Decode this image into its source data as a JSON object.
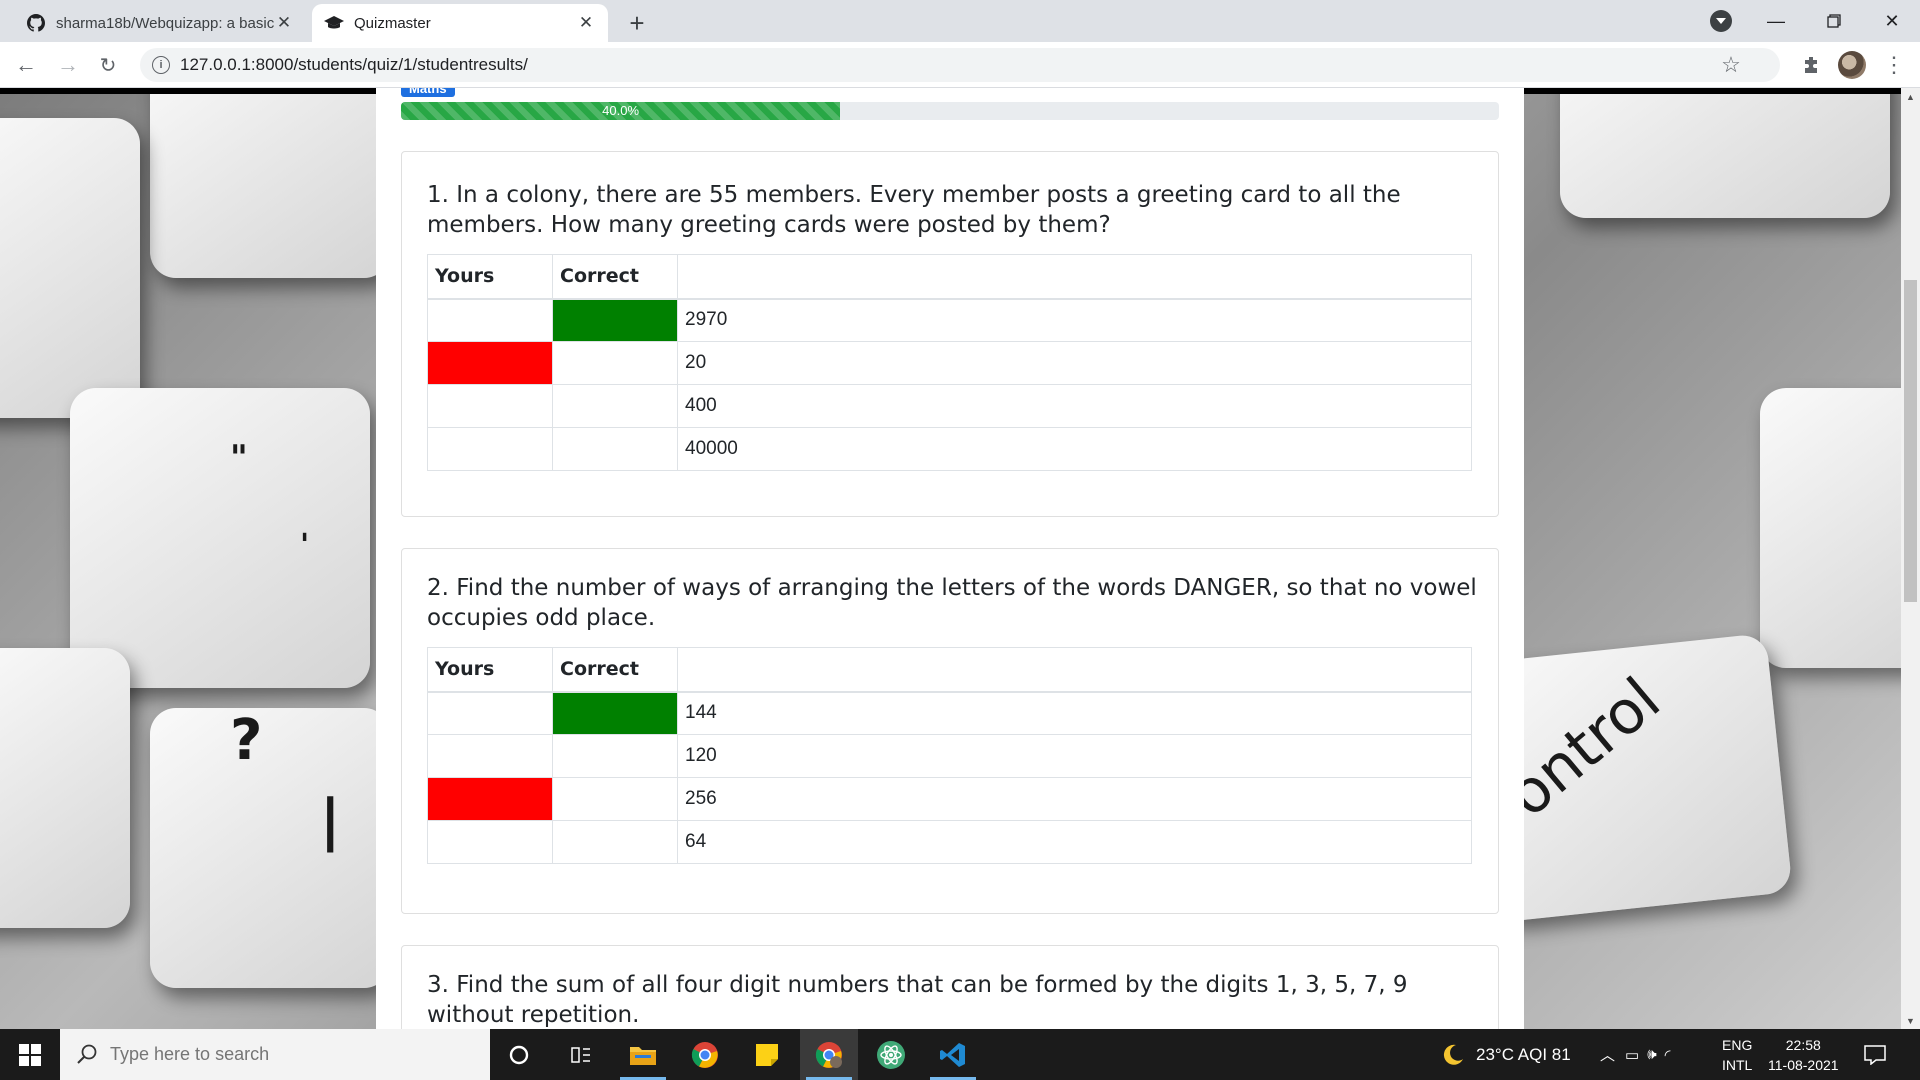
{
  "browser": {
    "tabs": [
      {
        "title": "sharma18b/Webquizapp: a basic",
        "icon": "github-icon",
        "active": false
      },
      {
        "title": "Quizmaster",
        "icon": "graduation-cap-icon",
        "active": true
      }
    ],
    "new_tab_label": "+",
    "url": "127.0.0.1:8000/students/quiz/1/studentresults/"
  },
  "page": {
    "subject_badge": "Maths",
    "progress": {
      "value": 0.4,
      "label": "40.0%"
    },
    "table_headers": {
      "yours": "Yours",
      "correct": "Correct"
    },
    "questions": [
      {
        "text": "1. In a colony, there are 55 members. Every member posts a greeting card to all the members. How many greeting cards were posted by them?",
        "answers": [
          {
            "text": "2970",
            "yours": false,
            "correct": true
          },
          {
            "text": "20",
            "yours": true,
            "correct": false
          },
          {
            "text": "400",
            "yours": false,
            "correct": false
          },
          {
            "text": "40000",
            "yours": false,
            "correct": false
          }
        ]
      },
      {
        "text": "2. Find the number of ways of arranging the letters of the words DANGER, so that no vowel occupies odd place.",
        "answers": [
          {
            "text": "144",
            "yours": false,
            "correct": true
          },
          {
            "text": "120",
            "yours": false,
            "correct": false
          },
          {
            "text": "256",
            "yours": true,
            "correct": false
          },
          {
            "text": "64",
            "yours": false,
            "correct": false
          }
        ]
      },
      {
        "text": "3. Find the sum of all four digit numbers that can be formed by the digits 1, 3, 5, 7, 9 without repetition.",
        "answers": []
      }
    ],
    "background_key_glyphs": [
      "\"",
      "'",
      "?",
      "|",
      "ontrol"
    ]
  },
  "colors": {
    "correct": "#008000",
    "wrong": "#ff0000",
    "progress": "#28a745",
    "badge": "#1e6fe0"
  },
  "taskbar": {
    "search_placeholder": "Type here to search",
    "weather": "23°C  AQI 81",
    "language_top": "ENG",
    "language_bottom": "INTL",
    "time": "22:58",
    "date": "11-08-2021",
    "apps": [
      "cortana-icon",
      "task-view-icon",
      "file-explorer-icon",
      "chrome-icon",
      "sticky-notes-icon",
      "chrome-profile-icon",
      "atom-icon",
      "vscode-icon"
    ]
  }
}
